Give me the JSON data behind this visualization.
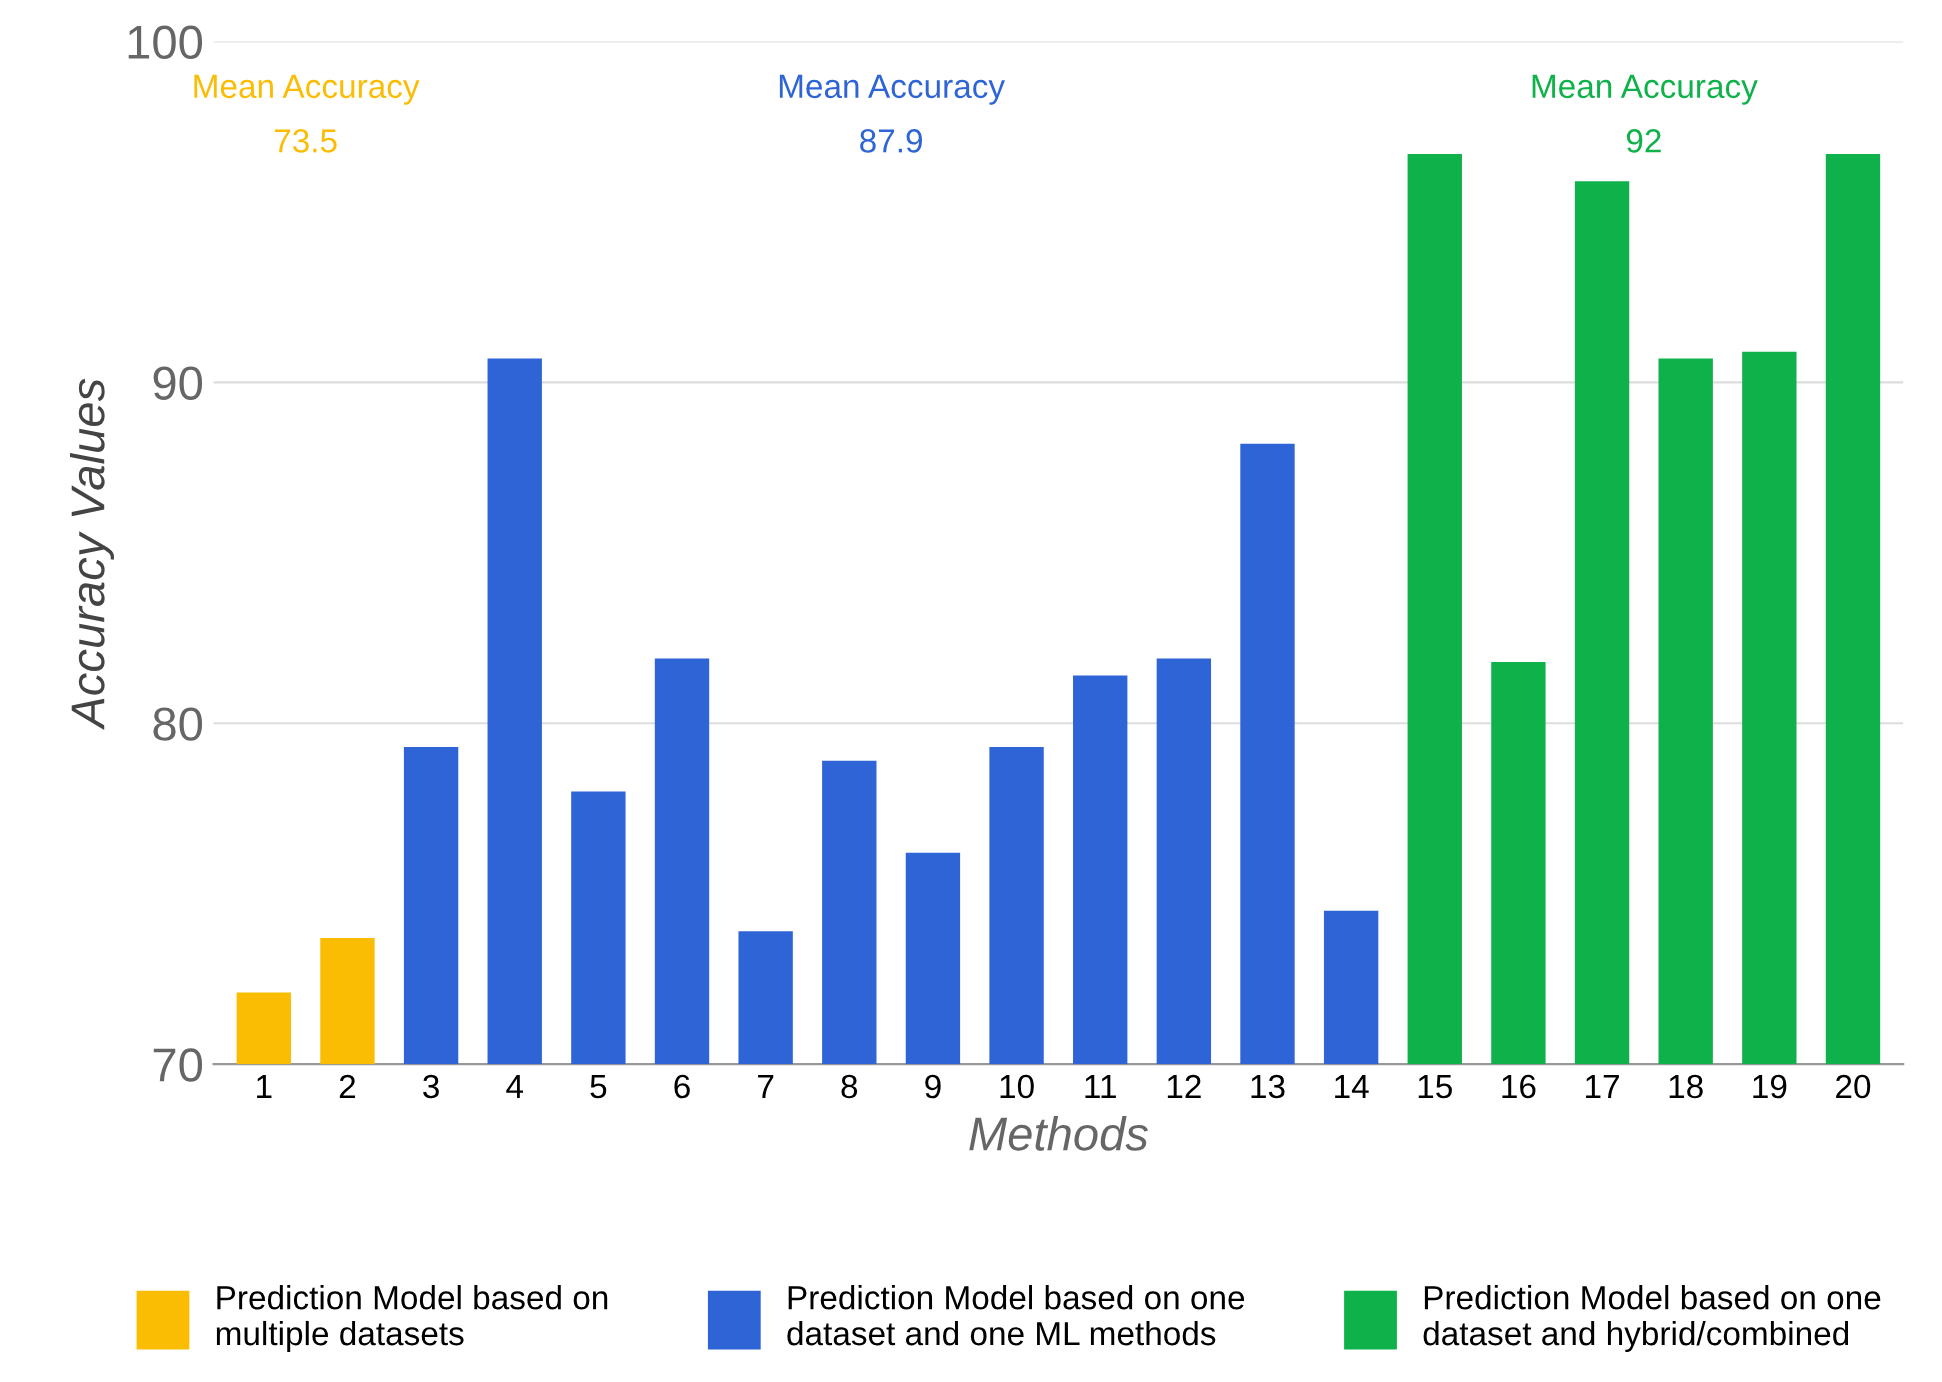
{
  "chart_data": {
    "type": "bar",
    "xlabel": "Methods",
    "ylabel": "Accuracy Values",
    "categories": [
      "1",
      "2",
      "3",
      "4",
      "5",
      "6",
      "7",
      "8",
      "9",
      "10",
      "11",
      "12",
      "13",
      "14",
      "15",
      "16",
      "17",
      "18",
      "19",
      "20"
    ],
    "series": [
      {
        "name": "Prediction Model based on\nmultiple datasets",
        "color": "#fbbc04",
        "values": [
          72.1,
          73.7,
          null,
          null,
          null,
          null,
          null,
          null,
          null,
          null,
          null,
          null,
          null,
          null,
          null,
          null,
          null,
          null,
          null,
          null
        ]
      },
      {
        "name": "Prediction Model based on one\ndataset and one ML methods",
        "color": "#2e64d6",
        "values": [
          null,
          null,
          79.3,
          90.7,
          78.0,
          81.9,
          73.9,
          78.9,
          76.2,
          79.3,
          81.4,
          81.9,
          88.2,
          74.5,
          null,
          null,
          null,
          null,
          null,
          null
        ]
      },
      {
        "name": "Prediction Model based on one\ndataset and hybrid/combined",
        "color": "#0fb14a",
        "values": [
          null,
          null,
          null,
          null,
          null,
          null,
          null,
          null,
          null,
          null,
          null,
          null,
          null,
          null,
          96.7,
          81.8,
          95.9,
          90.7,
          90.9,
          96.7
        ]
      }
    ],
    "ylim": [
      70,
      100
    ],
    "yticks": [
      70,
      80,
      90,
      100
    ],
    "grid": "y",
    "legend": "bottom",
    "annotations": [
      "Mean Accuracy",
      "73.5",
      "Mean Accuracy",
      "87.9",
      "Mean Accuracy",
      "92"
    ]
  }
}
